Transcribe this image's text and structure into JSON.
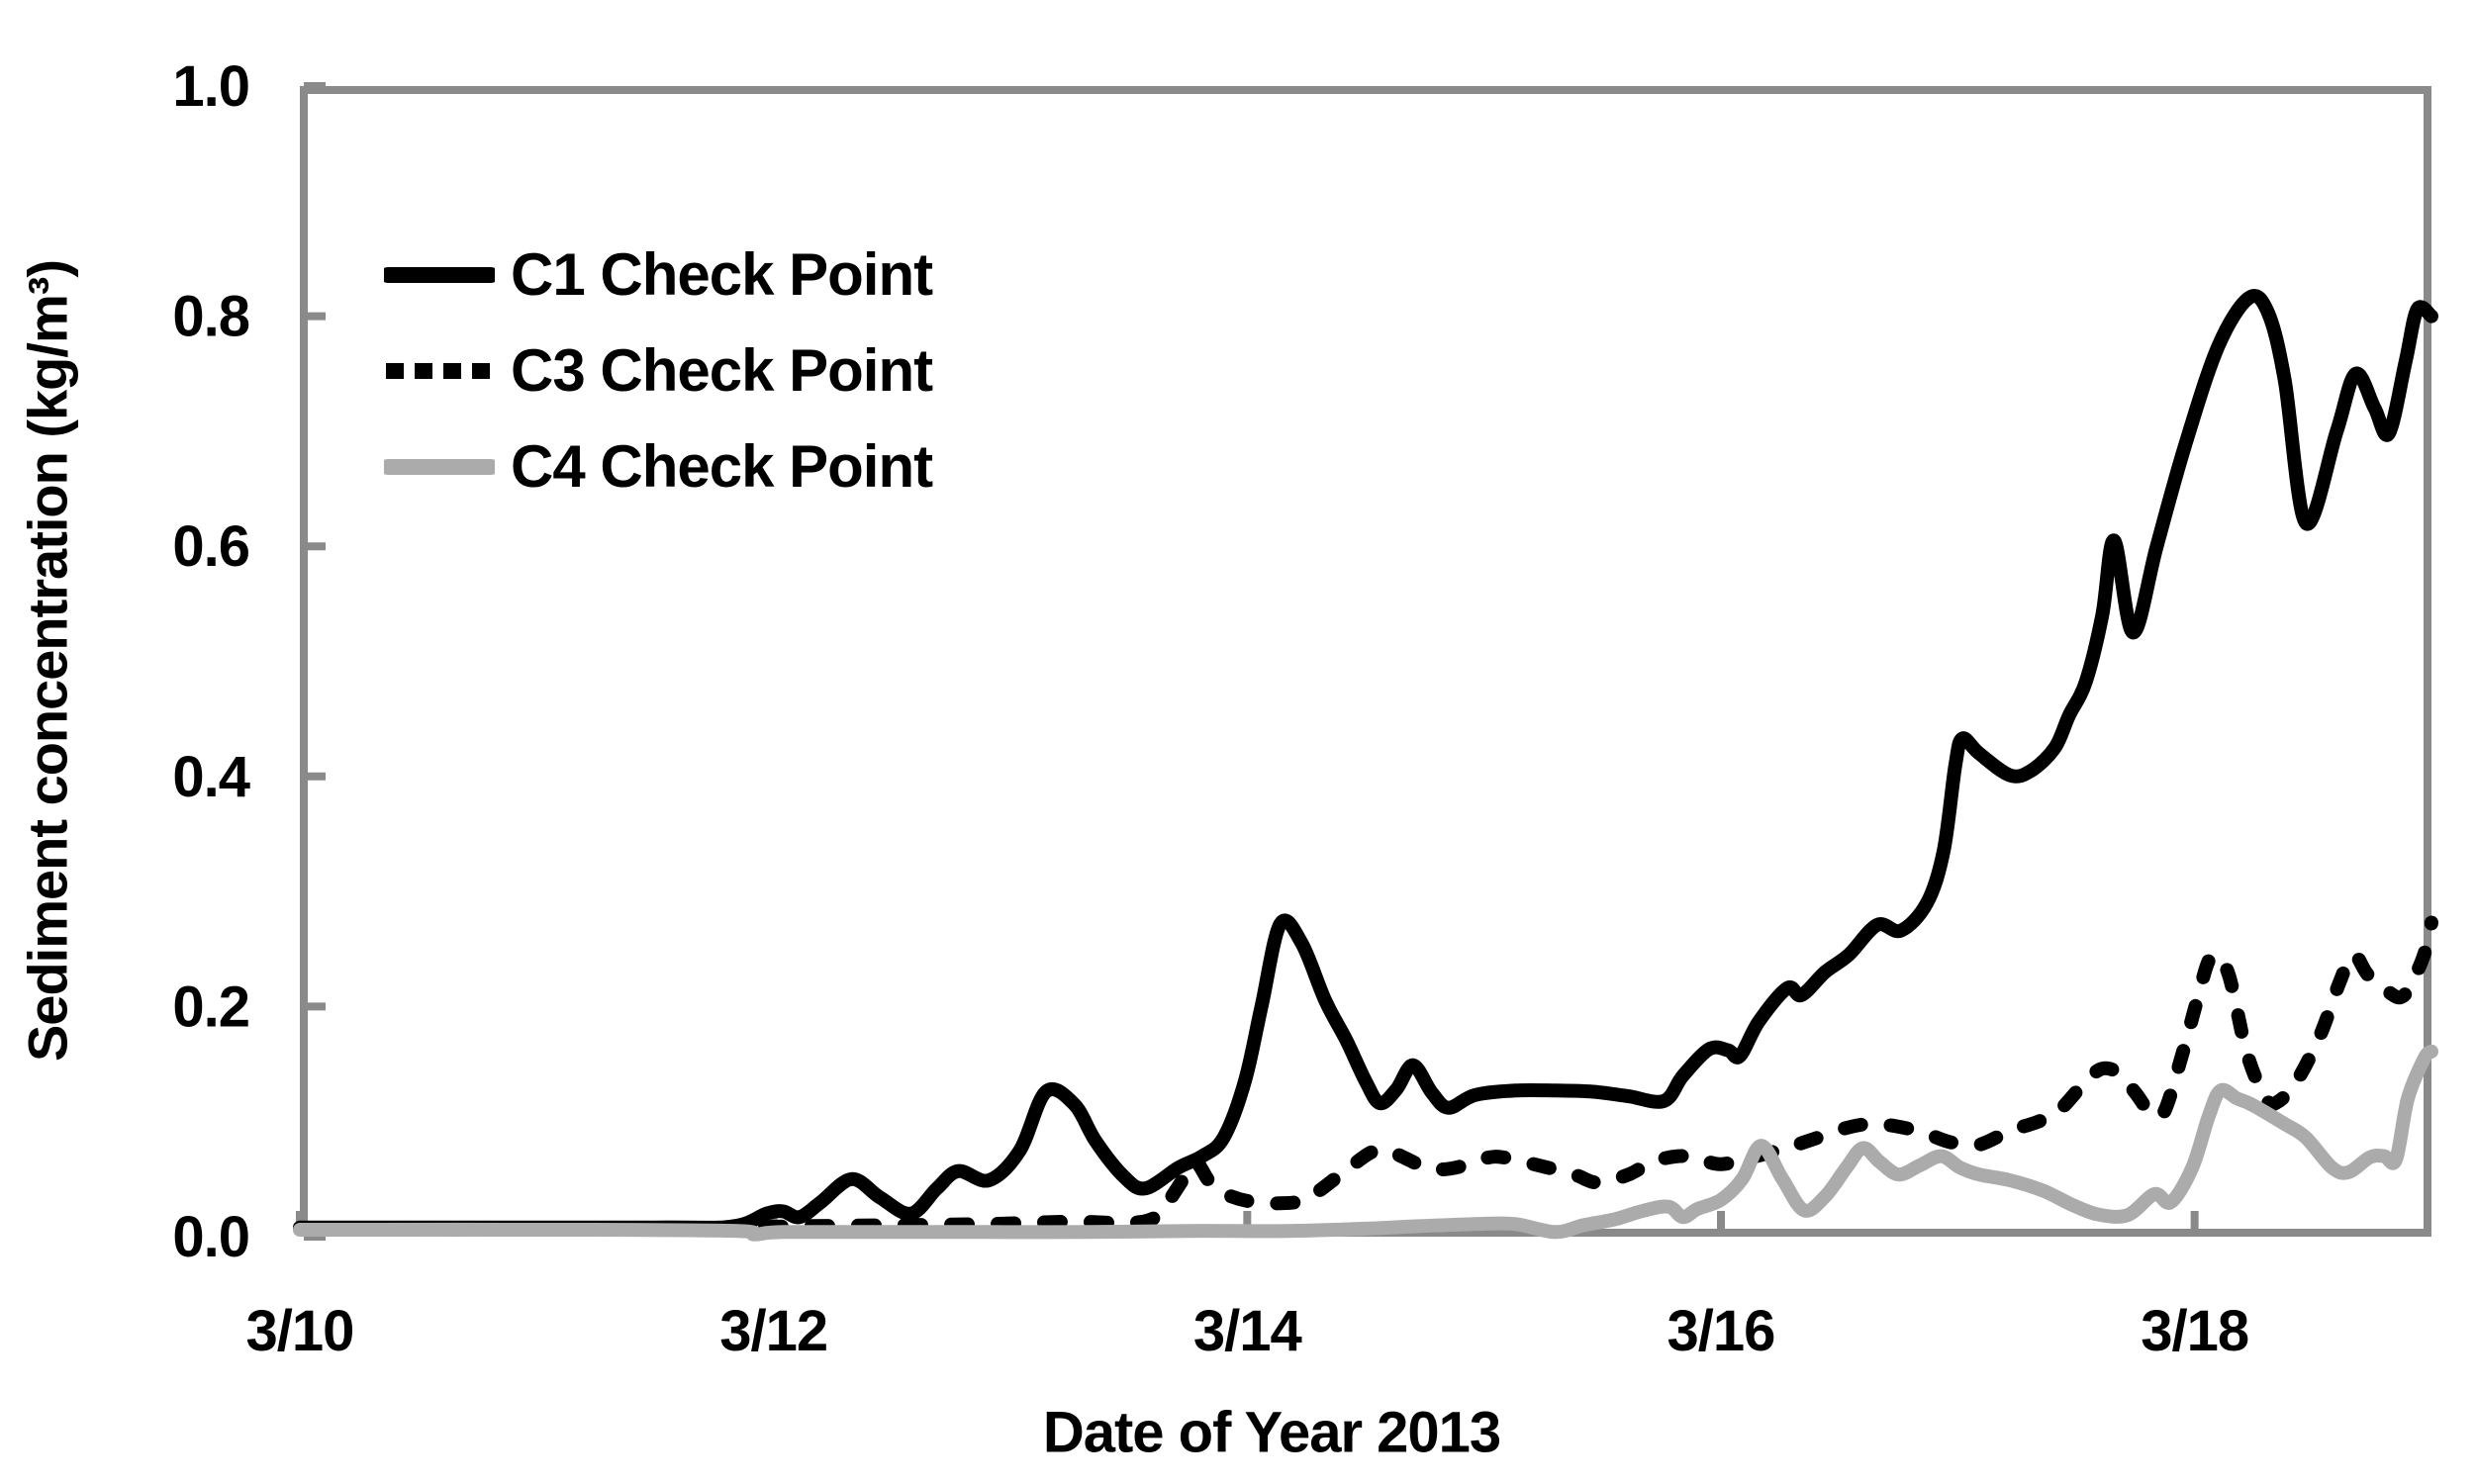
{
  "figure": {
    "background_color": "#ffffff",
    "axis_color": "#8a8a8a",
    "text_color": "#000000"
  },
  "chart_data": {
    "type": "line",
    "title": "",
    "xlabel": "Date of Year 2013",
    "ylabel": "Sediment concentration (kg/m³)",
    "x_note": "x values are decimal day-of-March 2013 (10 = 3/10)",
    "xlim": [
      10,
      19
    ],
    "ylim": [
      0.0,
      1.0
    ],
    "grid": false,
    "legend_position": "upper left inside plot",
    "x_ticks": [
      {
        "pos": 10,
        "label": "3/10"
      },
      {
        "pos": 12,
        "label": "3/12"
      },
      {
        "pos": 14,
        "label": "3/14"
      },
      {
        "pos": 16,
        "label": "3/16"
      },
      {
        "pos": 18,
        "label": "3/18"
      }
    ],
    "y_ticks": [
      {
        "pos": 0.0,
        "label": "0.0"
      },
      {
        "pos": 0.2,
        "label": "0.2"
      },
      {
        "pos": 0.4,
        "label": "0.4"
      },
      {
        "pos": 0.6,
        "label": "0.6"
      },
      {
        "pos": 0.8,
        "label": "0.8"
      },
      {
        "pos": 1.0,
        "label": "1.0"
      }
    ],
    "series": [
      {
        "name": "C1 Check Point",
        "color": "#000000",
        "style": "solid",
        "points": [
          [
            10,
            0.008
          ],
          [
            11.5,
            0.008
          ],
          [
            11.83,
            0.009
          ],
          [
            11.97,
            0.02
          ],
          [
            12.04,
            0.022
          ],
          [
            12.11,
            0.017
          ],
          [
            12.2,
            0.03
          ],
          [
            12.33,
            0.05
          ],
          [
            12.45,
            0.034
          ],
          [
            12.58,
            0.02
          ],
          [
            12.69,
            0.042
          ],
          [
            12.78,
            0.057
          ],
          [
            12.91,
            0.049
          ],
          [
            13.04,
            0.075
          ],
          [
            13.15,
            0.126
          ],
          [
            13.27,
            0.115
          ],
          [
            13.36,
            0.083
          ],
          [
            13.48,
            0.052
          ],
          [
            13.57,
            0.042
          ],
          [
            13.71,
            0.06
          ],
          [
            13.81,
            0.07
          ],
          [
            13.9,
            0.086
          ],
          [
            13.99,
            0.135
          ],
          [
            14.06,
            0.2
          ],
          [
            14.14,
            0.272
          ],
          [
            14.23,
            0.255
          ],
          [
            14.33,
            0.205
          ],
          [
            14.42,
            0.17
          ],
          [
            14.5,
            0.135
          ],
          [
            14.56,
            0.116
          ],
          [
            14.63,
            0.128
          ],
          [
            14.7,
            0.149
          ],
          [
            14.78,
            0.125
          ],
          [
            14.85,
            0.112
          ],
          [
            14.96,
            0.123
          ],
          [
            15.13,
            0.127
          ],
          [
            15.3,
            0.127
          ],
          [
            15.46,
            0.126
          ],
          [
            15.61,
            0.122
          ],
          [
            15.76,
            0.118
          ],
          [
            15.84,
            0.14
          ],
          [
            15.95,
            0.163
          ],
          [
            16.03,
            0.162
          ],
          [
            16.08,
            0.157
          ],
          [
            16.16,
            0.187
          ],
          [
            16.28,
            0.216
          ],
          [
            16.34,
            0.21
          ],
          [
            16.44,
            0.23
          ],
          [
            16.54,
            0.245
          ],
          [
            16.66,
            0.271
          ],
          [
            16.76,
            0.266
          ],
          [
            16.87,
            0.29
          ],
          [
            16.94,
            0.335
          ],
          [
            16.99,
            0.41
          ],
          [
            17.02,
            0.433
          ],
          [
            17.09,
            0.42
          ],
          [
            17.22,
            0.401
          ],
          [
            17.31,
            0.405
          ],
          [
            17.41,
            0.425
          ],
          [
            17.47,
            0.453
          ],
          [
            17.54,
            0.482
          ],
          [
            17.61,
            0.54
          ],
          [
            17.66,
            0.605
          ],
          [
            17.74,
            0.525
          ],
          [
            17.84,
            0.6
          ],
          [
            17.96,
            0.688
          ],
          [
            18.1,
            0.774
          ],
          [
            18.23,
            0.816
          ],
          [
            18.31,
            0.803
          ],
          [
            18.38,
            0.745
          ],
          [
            18.47,
            0.62
          ],
          [
            18.6,
            0.7
          ],
          [
            18.68,
            0.75
          ],
          [
            18.76,
            0.72
          ],
          [
            18.82,
            0.698
          ],
          [
            18.89,
            0.76
          ],
          [
            18.94,
            0.806
          ],
          [
            19,
            0.8
          ]
        ]
      },
      {
        "name": "C3 Check Point",
        "color": "#000000",
        "style": "dashed",
        "points": [
          [
            10,
            0.007
          ],
          [
            11,
            0.007
          ],
          [
            11.83,
            0.008
          ],
          [
            12.08,
            0.009
          ],
          [
            12.5,
            0.01
          ],
          [
            12.91,
            0.011
          ],
          [
            13.25,
            0.013
          ],
          [
            13.46,
            0.012
          ],
          [
            13.58,
            0.014
          ],
          [
            13.64,
            0.023
          ],
          [
            13.73,
            0.05
          ],
          [
            13.78,
            0.065
          ],
          [
            13.84,
            0.048
          ],
          [
            13.9,
            0.038
          ],
          [
            14,
            0.031
          ],
          [
            14.13,
            0.029
          ],
          [
            14.25,
            0.033
          ],
          [
            14.4,
            0.055
          ],
          [
            14.52,
            0.073
          ],
          [
            14.59,
            0.075
          ],
          [
            14.67,
            0.068
          ],
          [
            14.77,
            0.059
          ],
          [
            14.88,
            0.06
          ],
          [
            15,
            0.068
          ],
          [
            15.08,
            0.069
          ],
          [
            15.23,
            0.062
          ],
          [
            15.38,
            0.054
          ],
          [
            15.48,
            0.047
          ],
          [
            15.61,
            0.054
          ],
          [
            15.71,
            0.065
          ],
          [
            15.82,
            0.07
          ],
          [
            15.9,
            0.068
          ],
          [
            16,
            0.063
          ],
          [
            16.13,
            0.069
          ],
          [
            16.26,
            0.076
          ],
          [
            16.38,
            0.084
          ],
          [
            16.52,
            0.094
          ],
          [
            16.63,
            0.098
          ],
          [
            16.74,
            0.096
          ],
          [
            16.86,
            0.09
          ],
          [
            16.97,
            0.082
          ],
          [
            17.09,
            0.08
          ],
          [
            17.22,
            0.092
          ],
          [
            17.34,
            0.1
          ],
          [
            17.43,
            0.11
          ],
          [
            17.54,
            0.135
          ],
          [
            17.61,
            0.146
          ],
          [
            17.68,
            0.142
          ],
          [
            17.75,
            0.125
          ],
          [
            17.81,
            0.109
          ],
          [
            17.87,
            0.108
          ],
          [
            17.95,
            0.16
          ],
          [
            18.01,
            0.205
          ],
          [
            18.07,
            0.243
          ],
          [
            18.14,
            0.23
          ],
          [
            18.22,
            0.16
          ],
          [
            18.3,
            0.12
          ],
          [
            18.35,
            0.117
          ],
          [
            18.43,
            0.135
          ],
          [
            18.53,
            0.175
          ],
          [
            18.61,
            0.22
          ],
          [
            18.67,
            0.245
          ],
          [
            18.73,
            0.228
          ],
          [
            18.81,
            0.214
          ],
          [
            18.88,
            0.209
          ],
          [
            18.95,
            0.235
          ],
          [
            18.99,
            0.26
          ],
          [
            19,
            0.273
          ]
        ]
      },
      {
        "name": "C4 Check Point",
        "color": "#ababab",
        "style": "solid",
        "points": [
          [
            10,
            0.006
          ],
          [
            11.24,
            0.006
          ],
          [
            11.85,
            0.005
          ],
          [
            11.92,
            0.002
          ],
          [
            12.04,
            0.004
          ],
          [
            12.5,
            0.004
          ],
          [
            12.91,
            0.004
          ],
          [
            13.33,
            0.004
          ],
          [
            13.75,
            0.005
          ],
          [
            14.17,
            0.005
          ],
          [
            14.5,
            0.007
          ],
          [
            14.71,
            0.009
          ],
          [
            14.96,
            0.011
          ],
          [
            15.13,
            0.011
          ],
          [
            15.3,
            0.004
          ],
          [
            15.42,
            0.01
          ],
          [
            15.55,
            0.015
          ],
          [
            15.68,
            0.023
          ],
          [
            15.78,
            0.026
          ],
          [
            15.84,
            0.017
          ],
          [
            15.9,
            0.024
          ],
          [
            16,
            0.032
          ],
          [
            16.09,
            0.05
          ],
          [
            16.17,
            0.079
          ],
          [
            16.26,
            0.05
          ],
          [
            16.35,
            0.023
          ],
          [
            16.44,
            0.035
          ],
          [
            16.53,
            0.06
          ],
          [
            16.6,
            0.077
          ],
          [
            16.67,
            0.065
          ],
          [
            16.75,
            0.054
          ],
          [
            16.84,
            0.062
          ],
          [
            16.93,
            0.07
          ],
          [
            17.01,
            0.06
          ],
          [
            17.09,
            0.054
          ],
          [
            17.22,
            0.049
          ],
          [
            17.36,
            0.04
          ],
          [
            17.49,
            0.027
          ],
          [
            17.6,
            0.019
          ],
          [
            17.72,
            0.019
          ],
          [
            17.83,
            0.037
          ],
          [
            17.9,
            0.03
          ],
          [
            17.99,
            0.06
          ],
          [
            18.06,
            0.105
          ],
          [
            18.11,
            0.127
          ],
          [
            18.18,
            0.12
          ],
          [
            18.24,
            0.115
          ],
          [
            18.38,
            0.098
          ],
          [
            18.47,
            0.086
          ],
          [
            18.58,
            0.06
          ],
          [
            18.65,
            0.056
          ],
          [
            18.74,
            0.069
          ],
          [
            18.8,
            0.07
          ],
          [
            18.85,
            0.067
          ],
          [
            18.9,
            0.12
          ],
          [
            18.97,
            0.155
          ],
          [
            19,
            0.161
          ]
        ]
      }
    ]
  }
}
